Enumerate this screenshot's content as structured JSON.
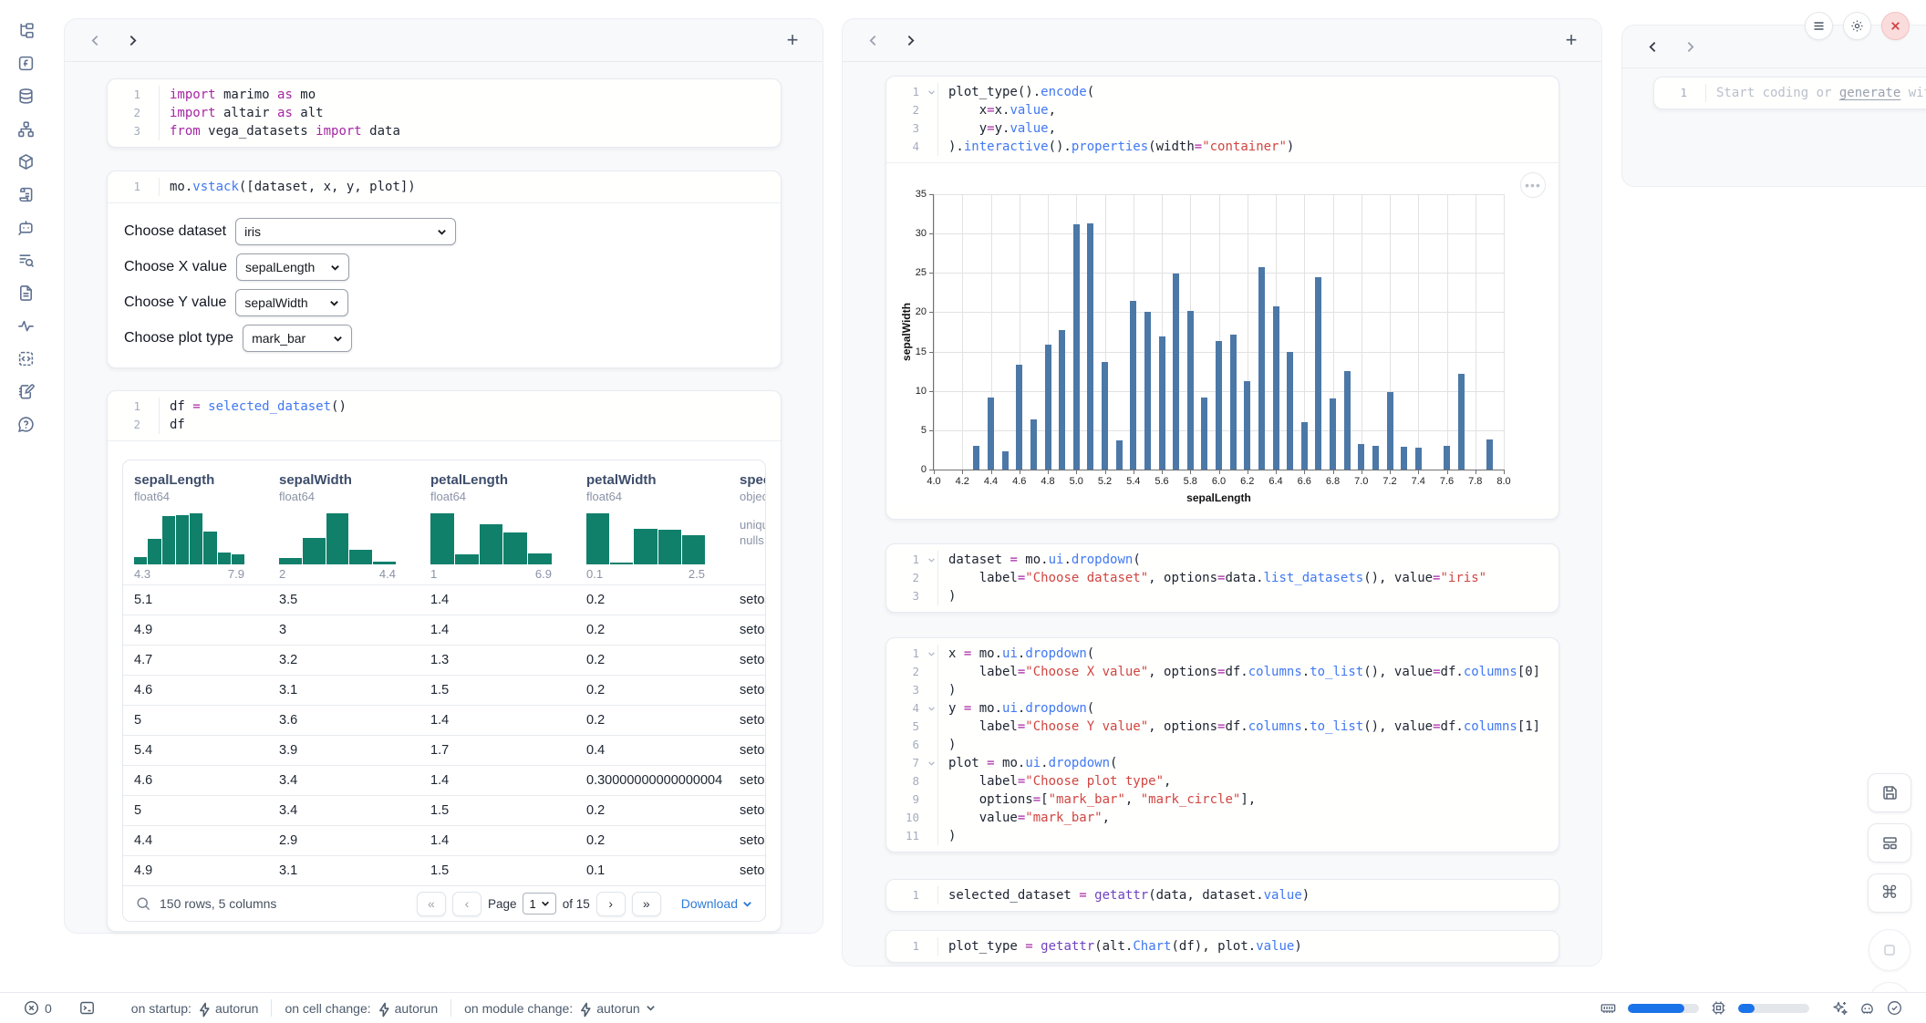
{
  "colors": {
    "chart_bar": "#4c78a8",
    "histogram_bar": "#10806b",
    "accent_blue": "#1a73e8",
    "link_blue": "#2e7cd6",
    "keyword": "#a626a4",
    "function": "#4078f2",
    "string": "#d14540",
    "close_red": "#cf4444"
  },
  "sidebar": {
    "icons": [
      "file-explorer",
      "functions",
      "database",
      "dependency-graph",
      "packages",
      "logs",
      "chat",
      "text-search",
      "documentation",
      "tracing",
      "snippets",
      "scratchpad",
      "help"
    ]
  },
  "columns": {
    "col1": {
      "cells": {
        "imports": {
          "folds": [],
          "lines": [
            [
              [
                "k",
                "import"
              ],
              [
                "p",
                " marimo "
              ],
              [
                "k",
                "as"
              ],
              [
                "p",
                " mo"
              ]
            ],
            [
              [
                "k",
                "import"
              ],
              [
                "p",
                " altair "
              ],
              [
                "k",
                "as"
              ],
              [
                "p",
                " alt"
              ]
            ],
            [
              [
                "k",
                "from"
              ],
              [
                "p",
                " vega_datasets "
              ],
              [
                "k",
                "import"
              ],
              [
                "p",
                " data"
              ]
            ]
          ]
        },
        "vstack": {
          "folds": [],
          "lines": [
            [
              [
                "p",
                "mo."
              ],
              [
                "f",
                "vstack"
              ],
              [
                "p",
                "([dataset, x, y, plot])"
              ]
            ]
          ]
        },
        "df": {
          "folds": [],
          "lines": [
            [
              [
                "p",
                "df "
              ],
              [
                "k",
                "="
              ],
              [
                "p",
                " "
              ],
              [
                "f",
                "selected_dataset"
              ],
              [
                "p",
                "()"
              ]
            ],
            [
              [
                "p",
                "df"
              ]
            ]
          ]
        }
      },
      "controls": {
        "dataset": {
          "label": "Choose dataset",
          "value": "iris"
        },
        "x": {
          "label": "Choose X value",
          "value": "sepalLength"
        },
        "y": {
          "label": "Choose Y value",
          "value": "sepalWidth"
        },
        "plot": {
          "label": "Choose plot type",
          "value": "mark_bar"
        }
      },
      "table": {
        "columns": [
          {
            "name": "sepalLength",
            "type": "float64",
            "min": "4.3",
            "max": "7.9",
            "hist": [
              14,
              46,
              88,
              90,
              93,
              60,
              22,
              19
            ]
          },
          {
            "name": "sepalWidth",
            "type": "float64",
            "min": "2",
            "max": "4.4",
            "hist": [
              13,
              52,
              100,
              28,
              5
            ]
          },
          {
            "name": "petalLength",
            "type": "float64",
            "min": "1",
            "max": "6.9",
            "hist": [
              100,
              20,
              78,
              62,
              21
            ]
          },
          {
            "name": "petalWidth",
            "type": "float64",
            "min": "0.1",
            "max": "2.5",
            "hist": [
              100,
              4,
              70,
              68,
              58
            ]
          },
          {
            "name": "speci",
            "type": "objec",
            "meta": [
              "uniqu",
              "nulls:"
            ]
          }
        ],
        "rows": [
          [
            "5.1",
            "3.5",
            "1.4",
            "0.2",
            "setos"
          ],
          [
            "4.9",
            "3",
            "1.4",
            "0.2",
            "setos"
          ],
          [
            "4.7",
            "3.2",
            "1.3",
            "0.2",
            "setos"
          ],
          [
            "4.6",
            "3.1",
            "1.5",
            "0.2",
            "setos"
          ],
          [
            "5",
            "3.6",
            "1.4",
            "0.2",
            "setos"
          ],
          [
            "5.4",
            "3.9",
            "1.7",
            "0.4",
            "setos"
          ],
          [
            "4.6",
            "3.4",
            "1.4",
            "0.30000000000000004",
            "setos"
          ],
          [
            "5",
            "3.4",
            "1.5",
            "0.2",
            "setos"
          ],
          [
            "4.4",
            "2.9",
            "1.4",
            "0.2",
            "setos"
          ],
          [
            "4.9",
            "3.1",
            "1.5",
            "0.1",
            "setos"
          ]
        ],
        "footer": {
          "summary": "150 rows, 5 columns",
          "page_label": "Page",
          "page_value": "1",
          "of_label": "of 15",
          "download_label": "Download"
        }
      }
    },
    "col2": {
      "cells": {
        "plot": {
          "folds": [
            1
          ],
          "lines": [
            [
              [
                "p",
                "plot_type()."
              ],
              [
                "f",
                "encode"
              ],
              [
                "p",
                "("
              ]
            ],
            [
              [
                "p",
                "    x"
              ],
              [
                "k",
                "="
              ],
              [
                "p",
                "x."
              ],
              [
                "f",
                "value"
              ],
              [
                "p",
                ","
              ]
            ],
            [
              [
                "p",
                "    y"
              ],
              [
                "k",
                "="
              ],
              [
                "p",
                "y."
              ],
              [
                "f",
                "value"
              ],
              [
                "p",
                ","
              ]
            ],
            [
              [
                "p",
                ")."
              ],
              [
                "f",
                "interactive"
              ],
              [
                "p",
                "()."
              ],
              [
                "f",
                "properties"
              ],
              [
                "p",
                "(width"
              ],
              [
                "k",
                "="
              ],
              [
                "s",
                "\"container\""
              ],
              [
                "p",
                ")"
              ]
            ]
          ]
        },
        "dataset": {
          "folds": [
            1
          ],
          "lines": [
            [
              [
                "p",
                "dataset "
              ],
              [
                "k",
                "="
              ],
              [
                "p",
                " mo."
              ],
              [
                "f",
                "ui"
              ],
              [
                "p",
                "."
              ],
              [
                "f",
                "dropdown"
              ],
              [
                "p",
                "("
              ]
            ],
            [
              [
                "p",
                "    label"
              ],
              [
                "k",
                "="
              ],
              [
                "s",
                "\"Choose dataset\""
              ],
              [
                "p",
                ", options"
              ],
              [
                "k",
                "="
              ],
              [
                "p",
                "data."
              ],
              [
                "f",
                "list_datasets"
              ],
              [
                "p",
                "(), value"
              ],
              [
                "k",
                "="
              ],
              [
                "s",
                "\"iris\""
              ]
            ],
            [
              [
                "p",
                ")"
              ]
            ]
          ]
        },
        "xyplot": {
          "folds": [
            1,
            4,
            7
          ],
          "lines": [
            [
              [
                "p",
                "x "
              ],
              [
                "k",
                "="
              ],
              [
                "p",
                " mo."
              ],
              [
                "f",
                "ui"
              ],
              [
                "p",
                "."
              ],
              [
                "f",
                "dropdown"
              ],
              [
                "p",
                "("
              ]
            ],
            [
              [
                "p",
                "    label"
              ],
              [
                "k",
                "="
              ],
              [
                "s",
                "\"Choose X value\""
              ],
              [
                "p",
                ", options"
              ],
              [
                "k",
                "="
              ],
              [
                "p",
                "df."
              ],
              [
                "f",
                "columns"
              ],
              [
                "p",
                "."
              ],
              [
                "f",
                "to_list"
              ],
              [
                "p",
                "(), value"
              ],
              [
                "k",
                "="
              ],
              [
                "p",
                "df."
              ],
              [
                "f",
                "columns"
              ],
              [
                "p",
                "[0]"
              ]
            ],
            [
              [
                "p",
                ")"
              ]
            ],
            [
              [
                "p",
                "y "
              ],
              [
                "k",
                "="
              ],
              [
                "p",
                " mo."
              ],
              [
                "f",
                "ui"
              ],
              [
                "p",
                "."
              ],
              [
                "f",
                "dropdown"
              ],
              [
                "p",
                "("
              ]
            ],
            [
              [
                "p",
                "    label"
              ],
              [
                "k",
                "="
              ],
              [
                "s",
                "\"Choose Y value\""
              ],
              [
                "p",
                ", options"
              ],
              [
                "k",
                "="
              ],
              [
                "p",
                "df."
              ],
              [
                "f",
                "columns"
              ],
              [
                "p",
                "."
              ],
              [
                "f",
                "to_list"
              ],
              [
                "p",
                "(), value"
              ],
              [
                "k",
                "="
              ],
              [
                "p",
                "df."
              ],
              [
                "f",
                "columns"
              ],
              [
                "p",
                "[1]"
              ]
            ],
            [
              [
                "p",
                ")"
              ]
            ],
            [
              [
                "p",
                "plot "
              ],
              [
                "k",
                "="
              ],
              [
                "p",
                " mo."
              ],
              [
                "f",
                "ui"
              ],
              [
                "p",
                "."
              ],
              [
                "f",
                "dropdown"
              ],
              [
                "p",
                "("
              ]
            ],
            [
              [
                "p",
                "    label"
              ],
              [
                "k",
                "="
              ],
              [
                "s",
                "\"Choose plot type\""
              ],
              [
                "p",
                ","
              ]
            ],
            [
              [
                "p",
                "    options"
              ],
              [
                "k",
                "="
              ],
              [
                "p",
                "["
              ],
              [
                "s",
                "\"mark_bar\""
              ],
              [
                "p",
                ", "
              ],
              [
                "s",
                "\"mark_circle\""
              ],
              [
                "p",
                "],"
              ]
            ],
            [
              [
                "p",
                "    value"
              ],
              [
                "k",
                "="
              ],
              [
                "s",
                "\"mark_bar\""
              ],
              [
                "p",
                ","
              ]
            ],
            [
              [
                "p",
                ")"
              ]
            ]
          ]
        },
        "selected": {
          "folds": [],
          "lines": [
            [
              [
                "p",
                "selected_dataset "
              ],
              [
                "k",
                "="
              ],
              [
                "p",
                " "
              ],
              [
                "b",
                "getattr"
              ],
              [
                "p",
                "(data, dataset."
              ],
              [
                "f",
                "value"
              ],
              [
                "p",
                ")"
              ]
            ]
          ]
        },
        "plottype": {
          "folds": [],
          "lines": [
            [
              [
                "p",
                "plot_type "
              ],
              [
                "k",
                "="
              ],
              [
                "p",
                " "
              ],
              [
                "b",
                "getattr"
              ],
              [
                "p",
                "(alt."
              ],
              [
                "f",
                "Chart"
              ],
              [
                "p",
                "(df), plot."
              ],
              [
                "f",
                "value"
              ],
              [
                "p",
                ")"
              ]
            ]
          ]
        }
      }
    },
    "col3": {
      "line_number": "1",
      "placeholder_pre": "Start coding or ",
      "placeholder_link": "generate",
      "placeholder_post": " with AI"
    }
  },
  "chart_data": {
    "type": "bar",
    "xlabel": "sepalLength",
    "ylabel": "sepalWidth",
    "xlim": [
      4.0,
      8.0
    ],
    "ylim": [
      0,
      35
    ],
    "grid": true,
    "bar_color": "#4c78a8",
    "x_ticks": [
      "4.0",
      "4.2",
      "4.4",
      "4.6",
      "4.8",
      "5.0",
      "5.2",
      "5.4",
      "5.6",
      "5.8",
      "6.0",
      "6.2",
      "6.4",
      "6.6",
      "6.8",
      "7.0",
      "7.2",
      "7.4",
      "7.6",
      "7.8",
      "8.0"
    ],
    "y_ticks": [
      0,
      5,
      10,
      15,
      20,
      25,
      30,
      35
    ],
    "x": [
      4.3,
      4.4,
      4.5,
      4.6,
      4.7,
      4.8,
      4.9,
      5.0,
      5.1,
      5.2,
      5.3,
      5.4,
      5.5,
      5.6,
      5.7,
      5.8,
      5.9,
      6.0,
      6.1,
      6.2,
      6.3,
      6.4,
      6.5,
      6.6,
      6.7,
      6.8,
      6.9,
      7.0,
      7.1,
      7.2,
      7.3,
      7.4,
      7.6,
      7.7,
      7.9
    ],
    "values": [
      3.0,
      9.1,
      2.3,
      13.3,
      6.4,
      15.9,
      17.7,
      31.2,
      31.3,
      13.7,
      3.7,
      21.4,
      20.0,
      16.9,
      24.9,
      20.2,
      9.2,
      16.4,
      17.1,
      11.3,
      25.7,
      20.7,
      15.0,
      6.0,
      24.4,
      9.0,
      12.5,
      3.2,
      3.0,
      9.8,
      2.9,
      2.8,
      3.0,
      12.2,
      3.8
    ]
  },
  "statusbar": {
    "error_count": "0",
    "groups": [
      {
        "label": "on startup:",
        "value": "autorun"
      },
      {
        "label": "on cell change:",
        "value": "autorun"
      },
      {
        "label": "on module change:",
        "value": "autorun"
      }
    ],
    "ram_pct": 80,
    "cpu_pct": 23
  }
}
